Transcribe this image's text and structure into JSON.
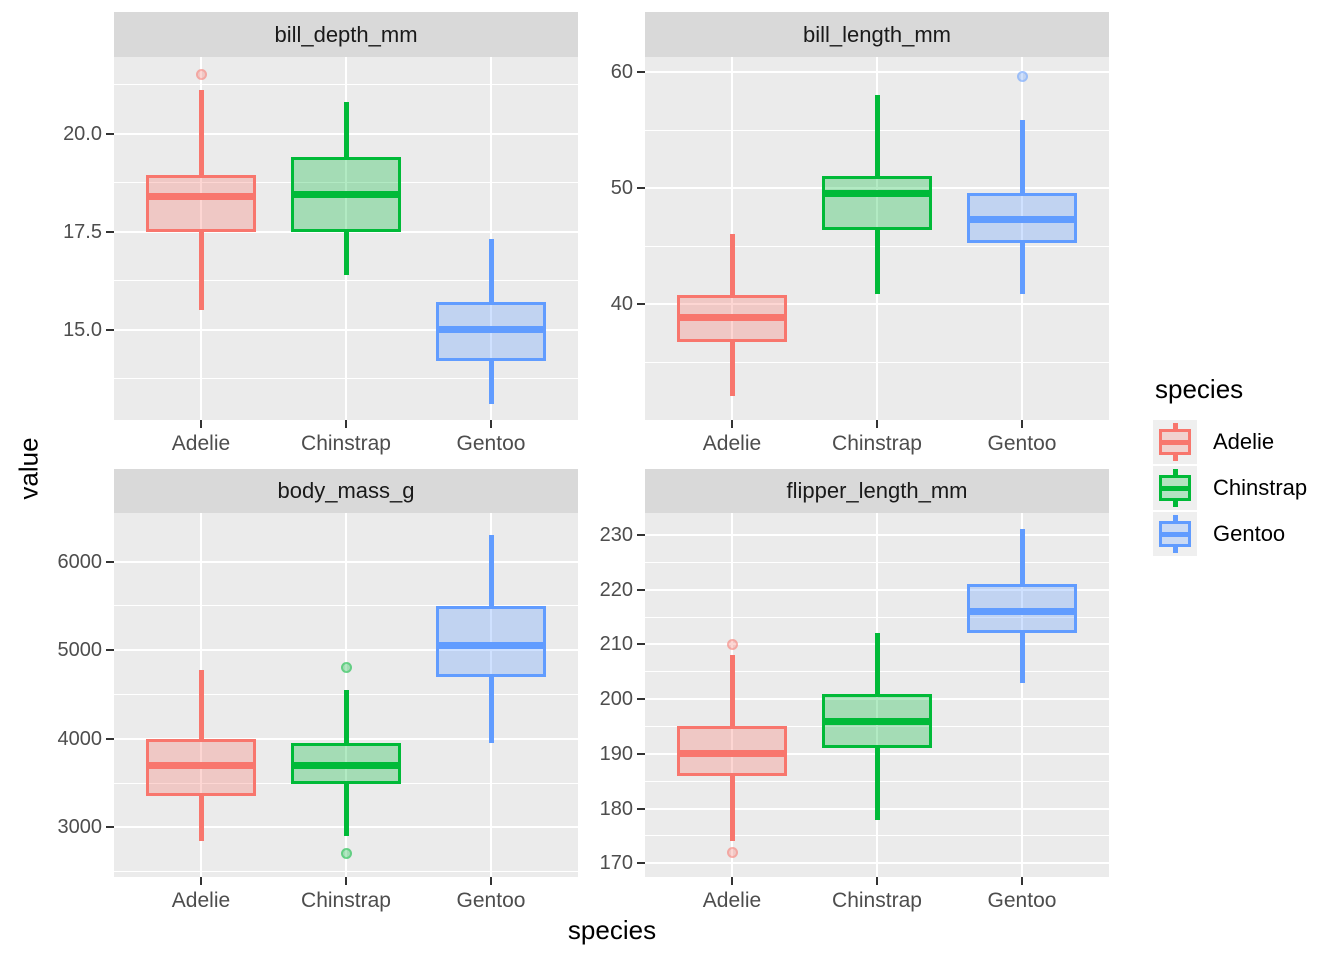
{
  "figure": {
    "y_axis_title": "value",
    "x_axis_title": "species"
  },
  "legend": {
    "title": "species",
    "entries": [
      {
        "label": "Adelie",
        "color": "#F8766D"
      },
      {
        "label": "Chinstrap",
        "color": "#00BA38"
      },
      {
        "label": "Gentoo",
        "color": "#619CFF"
      }
    ]
  },
  "colors": {
    "panel_bg": "#EBEBEB",
    "strip_bg": "#D9D9D9",
    "grid": "#FFFFFF",
    "axis_text": "#4D4D4D",
    "strip_text": "#1A1A1A",
    "tick_mark": "#333333",
    "legend_key_bg": "#EFEFEF",
    "species": {
      "Adelie": "#F8766D",
      "Chinstrap": "#00BA38",
      "Gentoo": "#619CFF"
    }
  },
  "chart_data": {
    "type": "boxplot",
    "facet_layout": "2x2 wrap, free y scales",
    "legend_position": "right",
    "xlabel": "species",
    "ylabel": "value",
    "categories": [
      "Adelie",
      "Chinstrap",
      "Gentoo"
    ],
    "facets": [
      {
        "title": "bill_depth_mm",
        "ylim": [
          12.7,
          21.95
        ],
        "yticks": [
          {
            "value": 15.0,
            "label": "15.0"
          },
          {
            "value": 17.5,
            "label": "17.5"
          },
          {
            "value": 20.0,
            "label": "20.0"
          }
        ],
        "yminor": [
          13.75,
          16.25,
          18.75,
          21.25
        ],
        "boxes": [
          {
            "species": "Adelie",
            "whisker_low": 15.5,
            "q1": 17.5,
            "median": 18.4,
            "q3": 18.95,
            "whisker_high": 21.1,
            "outliers": [
              21.5
            ]
          },
          {
            "species": "Chinstrap",
            "whisker_low": 16.4,
            "q1": 17.5,
            "median": 18.45,
            "q3": 19.4,
            "whisker_high": 20.8,
            "outliers": []
          },
          {
            "species": "Gentoo",
            "whisker_low": 13.1,
            "q1": 14.2,
            "median": 15.0,
            "q3": 15.7,
            "whisker_high": 17.3,
            "outliers": []
          }
        ]
      },
      {
        "title": "bill_length_mm",
        "ylim": [
          30.0,
          61.3
        ],
        "yticks": [
          {
            "value": 40,
            "label": "40"
          },
          {
            "value": 50,
            "label": "50"
          },
          {
            "value": 60,
            "label": "60"
          }
        ],
        "yminor": [
          35,
          45,
          55
        ],
        "boxes": [
          {
            "species": "Adelie",
            "whisker_low": 32.1,
            "q1": 36.75,
            "median": 38.8,
            "q3": 40.75,
            "whisker_high": 46.0,
            "outliers": []
          },
          {
            "species": "Chinstrap",
            "whisker_low": 40.9,
            "q1": 46.35,
            "median": 49.55,
            "q3": 51.08,
            "whisker_high": 58.0,
            "outliers": []
          },
          {
            "species": "Gentoo",
            "whisker_low": 40.9,
            "q1": 45.3,
            "median": 47.3,
            "q3": 49.55,
            "whisker_high": 55.9,
            "outliers": [
              59.6
            ]
          }
        ]
      },
      {
        "title": "body_mass_g",
        "ylim": [
          2440,
          6550
        ],
        "yticks": [
          {
            "value": 3000,
            "label": "3000"
          },
          {
            "value": 4000,
            "label": "4000"
          },
          {
            "value": 5000,
            "label": "5000"
          },
          {
            "value": 6000,
            "label": "6000"
          }
        ],
        "yminor": [
          2500,
          3500,
          4500,
          5500
        ],
        "boxes": [
          {
            "species": "Adelie",
            "whisker_low": 2850,
            "q1": 3350,
            "median": 3700,
            "q3": 4000,
            "whisker_high": 4775,
            "outliers": []
          },
          {
            "species": "Chinstrap",
            "whisker_low": 2900,
            "q1": 3487.5,
            "median": 3700,
            "q3": 3950,
            "whisker_high": 4550,
            "outliers": [
              4800,
              2700
            ]
          },
          {
            "species": "Gentoo",
            "whisker_low": 3950,
            "q1": 4700,
            "median": 5050,
            "q3": 5500,
            "whisker_high": 6300,
            "outliers": []
          }
        ]
      },
      {
        "title": "flipper_length_mm",
        "ylim": [
          167.5,
          234
        ],
        "yticks": [
          {
            "value": 170,
            "label": "170"
          },
          {
            "value": 180,
            "label": "180"
          },
          {
            "value": 190,
            "label": "190"
          },
          {
            "value": 200,
            "label": "200"
          },
          {
            "value": 210,
            "label": "210"
          },
          {
            "value": 220,
            "label": "220"
          },
          {
            "value": 230,
            "label": "230"
          }
        ],
        "yminor": [
          175,
          185,
          195,
          205,
          215,
          225
        ],
        "boxes": [
          {
            "species": "Adelie",
            "whisker_low": 174,
            "q1": 186,
            "median": 190,
            "q3": 195,
            "whisker_high": 208,
            "outliers": [
              210,
              172
            ]
          },
          {
            "species": "Chinstrap",
            "whisker_low": 178,
            "q1": 191,
            "median": 196,
            "q3": 201,
            "whisker_high": 212,
            "outliers": []
          },
          {
            "species": "Gentoo",
            "whisker_low": 203,
            "q1": 212,
            "median": 216,
            "q3": 221,
            "whisker_high": 231,
            "outliers": []
          }
        ]
      }
    ]
  }
}
